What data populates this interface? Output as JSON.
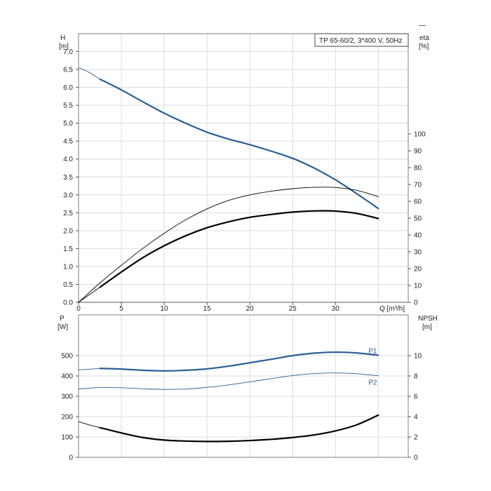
{
  "corner_mark": "—",
  "top_chart": {
    "title": "TP 65-60/2, 3*400 V, 50Hz",
    "left_axis": {
      "label": "H",
      "unit": "[m]"
    },
    "right_axis": {
      "label": "eta",
      "unit": "[%]"
    },
    "x_axis": {
      "label": "Q [m³/h]"
    }
  },
  "bottom_chart": {
    "left_axis": {
      "label": "P",
      "unit": "[W]"
    },
    "right_axis": {
      "label": "NPSH",
      "unit": "[m]"
    }
  },
  "colors": {
    "blue": "#2a5f96",
    "black": "#000000",
    "grid": "#dcdcdc"
  },
  "chart_data": [
    {
      "type": "line",
      "title": "TP 65-60/2, 3*400 V, 50Hz",
      "xlabel": "Q [m³/h]",
      "ylabel": "H [m]",
      "y2label": "eta [%]",
      "xlim": [
        0,
        38.5
      ],
      "ylim": [
        0,
        7.5
      ],
      "y2lim": [
        0,
        100
      ],
      "xticks": [
        0,
        5,
        10,
        15,
        20,
        25,
        30
      ],
      "yticks": [
        0.0,
        0.5,
        1.0,
        1.5,
        2.0,
        2.5,
        3.0,
        3.5,
        4.0,
        4.5,
        5.0,
        5.5,
        6.0,
        6.5,
        7.0
      ],
      "y2ticks": [
        0,
        10,
        20,
        30,
        40,
        50,
        60,
        70,
        80,
        90,
        100
      ],
      "grid": true,
      "series": [
        {
          "axis": "left",
          "color": "#2a5f96",
          "weight": "heavy",
          "x": [
            2.5,
            5,
            7.5,
            10,
            12.5,
            15,
            17.5,
            20,
            22.5,
            25,
            27.5,
            30,
            32.5,
            35
          ],
          "y": [
            6.23,
            5.93,
            5.6,
            5.28,
            5.0,
            4.75,
            4.56,
            4.4,
            4.22,
            4.02,
            3.75,
            3.42,
            3.03,
            2.62
          ]
        },
        {
          "axis": "left",
          "color": "#2a5f96",
          "weight": "thin",
          "x": [
            0,
            1,
            2.5
          ],
          "y": [
            6.55,
            6.45,
            6.23
          ]
        },
        {
          "axis": "right",
          "color": "#000000",
          "weight": "heavy",
          "x": [
            2.5,
            5,
            7.5,
            10,
            12.5,
            15,
            17.5,
            20,
            22.5,
            25,
            27.5,
            30,
            32.5,
            35
          ],
          "y": [
            9,
            18,
            26.5,
            33.6,
            39.5,
            44.3,
            47.8,
            50.5,
            52.2,
            53.6,
            54.3,
            54.2,
            52.8,
            49.8
          ]
        },
        {
          "axis": "right",
          "color": "#000000",
          "weight": "thin",
          "x": [
            0,
            2.5
          ],
          "y": [
            0,
            9
          ]
        },
        {
          "axis": "right",
          "color": "#000000",
          "weight": "thin",
          "x": [
            0,
            2.5,
            5,
            7.5,
            10,
            12.5,
            15,
            17.5,
            20,
            22.5,
            25,
            27.5,
            30,
            32.5,
            35
          ],
          "y": [
            0,
            11.5,
            22,
            32,
            41,
            49,
            55.5,
            60.5,
            63.8,
            66,
            67.5,
            68.3,
            68.2,
            66.5,
            62.8
          ]
        }
      ]
    },
    {
      "type": "line",
      "ylabel": "P [W]",
      "y2label": "NPSH [m]",
      "xlim": [
        0,
        38.5
      ],
      "ylim": [
        0,
        700
      ],
      "y2lim": [
        0,
        14
      ],
      "yticks": [
        0,
        100,
        200,
        300,
        400,
        500
      ],
      "y2ticks": [
        0,
        2,
        4,
        6,
        8,
        10
      ],
      "grid": true,
      "series": [
        {
          "name": "P1",
          "axis": "left",
          "color": "#2a5f96",
          "weight": "heavy",
          "x": [
            2.5,
            5,
            7.5,
            10,
            12.5,
            15,
            17.5,
            20,
            22.5,
            25,
            27.5,
            30,
            32.5,
            35
          ],
          "y": [
            437,
            434,
            428,
            425,
            428,
            435,
            448,
            465,
            482,
            500,
            512,
            517,
            513,
            502
          ]
        },
        {
          "axis": "left",
          "color": "#2a5f96",
          "weight": "thin",
          "x": [
            0,
            2.5
          ],
          "y": [
            430,
            437
          ]
        },
        {
          "name": "P2",
          "axis": "left",
          "color": "#2a5f96",
          "weight": "thin",
          "x": [
            0,
            2.5,
            5,
            7.5,
            10,
            12.5,
            15,
            17.5,
            20,
            22.5,
            25,
            27.5,
            30,
            32.5,
            35
          ],
          "y": [
            336,
            343,
            342,
            337,
            334,
            336,
            344,
            356,
            371,
            387,
            402,
            412,
            415,
            411,
            401
          ]
        },
        {
          "axis": "right",
          "color": "#000000",
          "weight": "heavy",
          "x": [
            2.5,
            5,
            7.5,
            10,
            12.5,
            15,
            17.5,
            20,
            22.5,
            25,
            27.5,
            30,
            32.5,
            35
          ],
          "y": [
            2.92,
            2.4,
            1.95,
            1.7,
            1.6,
            1.56,
            1.58,
            1.65,
            1.77,
            1.95,
            2.2,
            2.6,
            3.2,
            4.15
          ]
        },
        {
          "axis": "right",
          "color": "#000000",
          "weight": "thin",
          "x": [
            0,
            1.2,
            2.5
          ],
          "y": [
            3.5,
            3.2,
            2.92
          ]
        }
      ]
    }
  ]
}
